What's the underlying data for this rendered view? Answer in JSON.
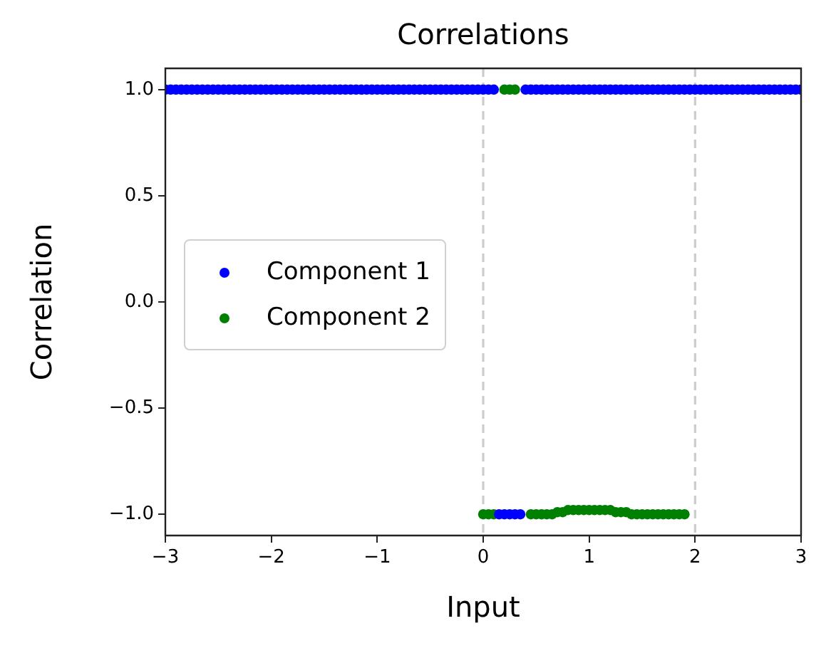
{
  "chart_data": {
    "type": "scatter",
    "title": "Correlations",
    "xlabel": "Input",
    "ylabel": "Correlation",
    "x": [
      -3,
      -2.95,
      -2.9,
      -2.85,
      -2.8,
      -2.75,
      -2.7,
      -2.65,
      -2.6,
      -2.55,
      -2.5,
      -2.45,
      -2.4,
      -2.35,
      -2.3,
      -2.25,
      -2.2,
      -2.15,
      -2.1,
      -2.05,
      -2,
      -1.95,
      -1.9,
      -1.85,
      -1.8,
      -1.75,
      -1.7,
      -1.65,
      -1.6,
      -1.55,
      -1.5,
      -1.45,
      -1.4,
      -1.35,
      -1.3,
      -1.25,
      -1.2,
      -1.15,
      -1.1,
      -1.05,
      -1,
      -0.95,
      -0.9,
      -0.85,
      -0.8,
      -0.75,
      -0.7,
      -0.65,
      -0.6,
      -0.55,
      -0.5,
      -0.45,
      -0.4,
      -0.35,
      -0.3,
      -0.25,
      -0.2,
      -0.15,
      -0.1,
      -0.05,
      0,
      0.05,
      0.1,
      0.15,
      0.2,
      0.25,
      0.3,
      0.35,
      0.4,
      0.45,
      0.5,
      0.55,
      0.6,
      0.65,
      0.7,
      0.75,
      0.8,
      0.85,
      0.9,
      0.95,
      1,
      1.05,
      1.1,
      1.15,
      1.2,
      1.25,
      1.3,
      1.35,
      1.4,
      1.45,
      1.5,
      1.55,
      1.6,
      1.65,
      1.7,
      1.75,
      1.8,
      1.85,
      1.9,
      1.95,
      2,
      2.05,
      2.1,
      2.15,
      2.2,
      2.25,
      2.3,
      2.35,
      2.4,
      2.45,
      2.5,
      2.55,
      2.6,
      2.65,
      2.7,
      2.75,
      2.8,
      2.85,
      2.9,
      2.95,
      3
    ],
    "series": [
      {
        "name": "Component 1",
        "color": "#0000ff",
        "values": [
          1,
          1,
          1,
          1,
          1,
          1,
          1,
          1,
          1,
          1,
          1,
          1,
          1,
          1,
          1,
          1,
          1,
          1,
          1,
          1,
          1,
          1,
          1,
          1,
          1,
          1,
          1,
          1,
          1,
          1,
          1,
          1,
          1,
          1,
          1,
          1,
          1,
          1,
          1,
          1,
          1,
          1,
          1,
          1,
          1,
          1,
          1,
          1,
          1,
          1,
          1,
          1,
          1,
          1,
          1,
          1,
          1,
          1,
          1,
          1,
          1,
          1,
          1,
          -1,
          -1,
          -1,
          -1,
          -1,
          1,
          1,
          1,
          1,
          1,
          1,
          1,
          1,
          1,
          1,
          1,
          1,
          1,
          1,
          1,
          1,
          1,
          1,
          1,
          1,
          1,
          1,
          1,
          1,
          1,
          1,
          1,
          1,
          1,
          1,
          1,
          1,
          1,
          1,
          1,
          1,
          1,
          1,
          1,
          1,
          1,
          1,
          1,
          1,
          1,
          1,
          1,
          1,
          1,
          1,
          1,
          1,
          1
        ]
      },
      {
        "name": "Component 2",
        "color": "#008000",
        "values": [
          null,
          null,
          null,
          null,
          null,
          null,
          null,
          null,
          null,
          null,
          null,
          null,
          null,
          null,
          null,
          null,
          null,
          null,
          null,
          null,
          null,
          null,
          null,
          null,
          null,
          null,
          null,
          null,
          null,
          null,
          null,
          null,
          null,
          null,
          null,
          null,
          null,
          null,
          null,
          null,
          null,
          null,
          null,
          null,
          null,
          null,
          null,
          null,
          null,
          null,
          null,
          null,
          null,
          null,
          null,
          null,
          null,
          null,
          null,
          null,
          -1,
          -1,
          -1,
          null,
          1,
          1,
          1,
          null,
          null,
          -1,
          -1,
          -1,
          -1,
          -1,
          -0.99,
          -0.99,
          -0.98,
          -0.98,
          -0.98,
          -0.98,
          -0.98,
          -0.98,
          -0.98,
          -0.98,
          -0.98,
          -0.99,
          -0.99,
          -0.99,
          -1,
          -1,
          -1,
          -1,
          -1,
          -1,
          -1,
          -1,
          -1,
          -1,
          -1,
          null,
          null,
          null,
          null,
          null,
          null,
          null,
          null,
          null,
          null,
          null,
          null,
          null,
          null,
          null,
          null,
          null,
          null,
          null,
          null,
          null,
          null
        ]
      }
    ],
    "xlim": [
      -3,
      3
    ],
    "xticks": [
      {
        "value": -3,
        "label": "−3"
      },
      {
        "value": -2,
        "label": "−2"
      },
      {
        "value": -1,
        "label": "−1"
      },
      0,
      1,
      2,
      3
    ],
    "ylim": [
      -1.1,
      1.1
    ],
    "yticks": [
      {
        "value": -1,
        "label": "−1.0"
      },
      {
        "value": -0.5,
        "label": "−0.5"
      },
      {
        "value": 0,
        "label": "0.0"
      },
      {
        "value": 0.5,
        "label": "0.5"
      },
      {
        "value": 1,
        "label": "1.0"
      }
    ],
    "ref_lines": [
      {
        "axis": "x",
        "value": 0,
        "color": "#cccccc",
        "line_style": "dashed"
      },
      {
        "axis": "x",
        "value": 2,
        "color": "#cccccc",
        "line_style": "dashed"
      }
    ],
    "grid": false,
    "legend": "left",
    "marker": "circle"
  }
}
